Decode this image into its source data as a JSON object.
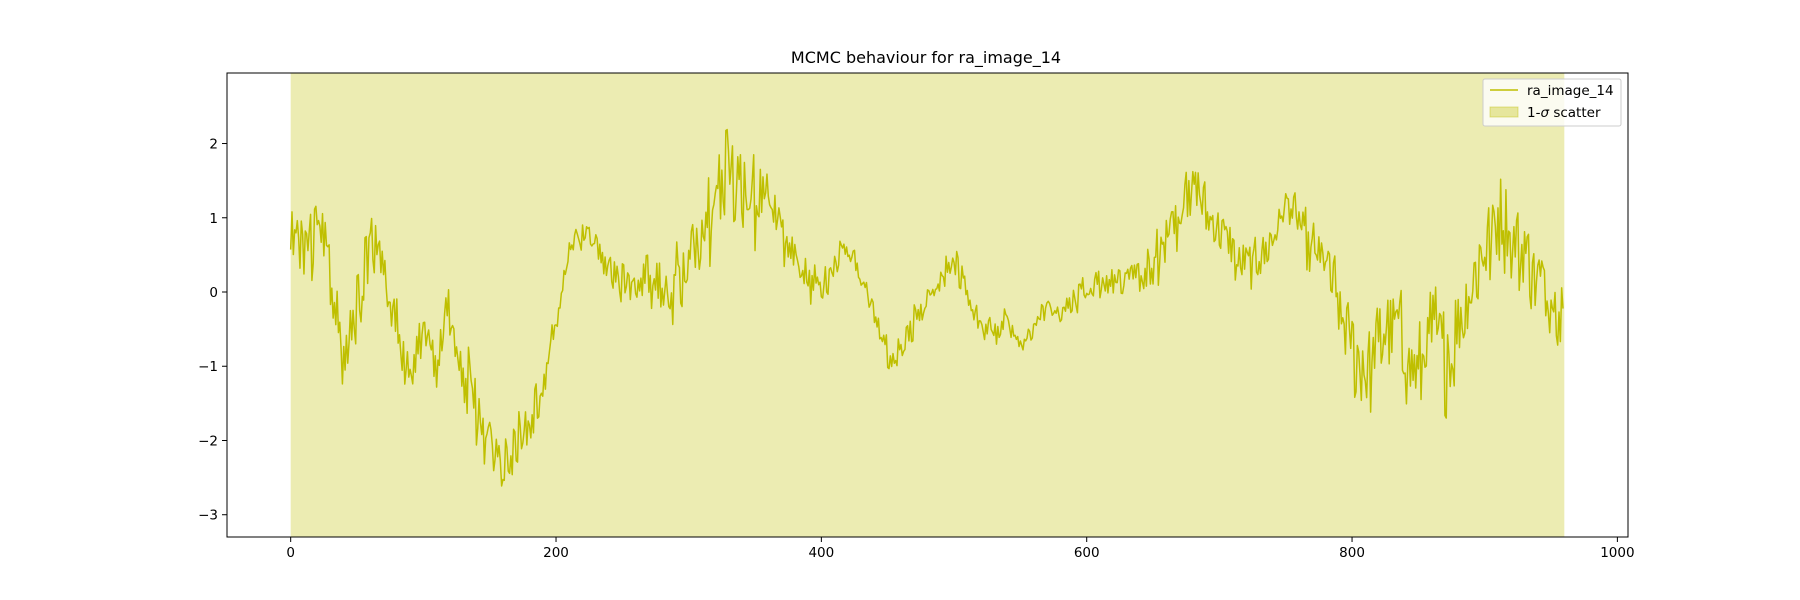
{
  "chart_data": {
    "type": "line",
    "title": "MCMC behaviour for ra_image_14",
    "xlabel": "",
    "ylabel": "",
    "xlim": [
      -48,
      1008
    ],
    "ylim": [
      -3.3,
      2.95
    ],
    "xticks": [
      0,
      200,
      400,
      600,
      800,
      1000
    ],
    "yticks": [
      -3,
      -2,
      -1,
      0,
      1,
      2
    ],
    "xtick_labels": [
      "0",
      "200",
      "400",
      "600",
      "800",
      "1000"
    ],
    "ytick_labels": [
      "−3",
      "−2",
      "−1",
      "0",
      "1",
      "2"
    ],
    "grid": false,
    "legend_position": "top-right",
    "n_samples": 960,
    "series": [
      {
        "name": "ra_image_14",
        "color": "#bfbf00",
        "anchors": [
          [
            0,
            0.85
          ],
          [
            10,
            0.6
          ],
          [
            20,
            0.9
          ],
          [
            30,
            0.2
          ],
          [
            40,
            -0.9
          ],
          [
            50,
            -0.3
          ],
          [
            60,
            0.8
          ],
          [
            70,
            0.4
          ],
          [
            80,
            -0.5
          ],
          [
            90,
            -1.2
          ],
          [
            100,
            -0.5
          ],
          [
            110,
            -1.0
          ],
          [
            120,
            -0.3
          ],
          [
            130,
            -1.0
          ],
          [
            140,
            -1.6
          ],
          [
            150,
            -2.0
          ],
          [
            160,
            -2.4
          ],
          [
            170,
            -2.0
          ],
          [
            180,
            -1.8
          ],
          [
            190,
            -1.3
          ],
          [
            200,
            -0.4
          ],
          [
            210,
            0.5
          ],
          [
            220,
            0.8
          ],
          [
            230,
            0.7
          ],
          [
            240,
            0.3
          ],
          [
            250,
            0.1
          ],
          [
            260,
            0.0
          ],
          [
            270,
            0.2
          ],
          [
            280,
            -0.1
          ],
          [
            290,
            0.1
          ],
          [
            300,
            0.4
          ],
          [
            310,
            0.8
          ],
          [
            320,
            1.3
          ],
          [
            330,
            1.8
          ],
          [
            340,
            1.5
          ],
          [
            350,
            1.2
          ],
          [
            360,
            1.4
          ],
          [
            370,
            0.8
          ],
          [
            380,
            0.4
          ],
          [
            390,
            0.2
          ],
          [
            400,
            0.1
          ],
          [
            410,
            0.4
          ],
          [
            420,
            0.6
          ],
          [
            430,
            0.2
          ],
          [
            440,
            -0.3
          ],
          [
            450,
            -0.8
          ],
          [
            460,
            -0.8
          ],
          [
            470,
            -0.4
          ],
          [
            480,
            -0.1
          ],
          [
            490,
            0.2
          ],
          [
            500,
            0.4
          ],
          [
            510,
            0.0
          ],
          [
            520,
            -0.4
          ],
          [
            530,
            -0.6
          ],
          [
            540,
            -0.3
          ],
          [
            550,
            -0.8
          ],
          [
            560,
            -0.5
          ],
          [
            570,
            -0.2
          ],
          [
            580,
            -0.3
          ],
          [
            590,
            -0.1
          ],
          [
            600,
            0.0
          ],
          [
            610,
            0.1
          ],
          [
            620,
            0.2
          ],
          [
            630,
            0.2
          ],
          [
            640,
            0.3
          ],
          [
            650,
            0.4
          ],
          [
            660,
            0.7
          ],
          [
            670,
            1.1
          ],
          [
            680,
            1.4
          ],
          [
            690,
            1.1
          ],
          [
            700,
            0.9
          ],
          [
            710,
            0.5
          ],
          [
            720,
            0.3
          ],
          [
            730,
            0.5
          ],
          [
            740,
            0.7
          ],
          [
            750,
            1.2
          ],
          [
            760,
            0.9
          ],
          [
            770,
            0.6
          ],
          [
            780,
            0.4
          ],
          [
            790,
            -0.2
          ],
          [
            800,
            -0.8
          ],
          [
            810,
            -1.1
          ],
          [
            820,
            -0.7
          ],
          [
            830,
            -0.3
          ],
          [
            840,
            -0.8
          ],
          [
            850,
            -1.0
          ],
          [
            860,
            -0.4
          ],
          [
            870,
            -0.9
          ],
          [
            880,
            -0.6
          ],
          [
            890,
            0.1
          ],
          [
            900,
            0.6
          ],
          [
            910,
            0.9
          ],
          [
            920,
            0.7
          ],
          [
            930,
            0.5
          ],
          [
            940,
            0.2
          ],
          [
            950,
            0.0
          ],
          [
            959,
            -0.2
          ]
        ],
        "noise_amplitude": [
          [
            0,
            0.7
          ],
          [
            60,
            0.7
          ],
          [
            100,
            0.45
          ],
          [
            140,
            0.7
          ],
          [
            200,
            0.25
          ],
          [
            260,
            0.35
          ],
          [
            300,
            0.75
          ],
          [
            340,
            0.8
          ],
          [
            380,
            0.4
          ],
          [
            440,
            0.3
          ],
          [
            500,
            0.25
          ],
          [
            560,
            0.2
          ],
          [
            620,
            0.25
          ],
          [
            660,
            0.55
          ],
          [
            700,
            0.45
          ],
          [
            760,
            0.4
          ],
          [
            800,
            0.75
          ],
          [
            860,
            0.85
          ],
          [
            900,
            0.8
          ],
          [
            959,
            0.6
          ]
        ]
      }
    ],
    "band": {
      "name": "1-σ scatter",
      "x_start": 0,
      "x_end": 960,
      "y_low": -5,
      "y_high": 5,
      "color": "#bfbf00",
      "opacity": 0.3
    },
    "legend": [
      {
        "label": "ra_image_14",
        "kind": "line"
      },
      {
        "label_prefix": "1-",
        "label_symbol": "σ",
        "label_suffix": " scatter",
        "kind": "patch"
      }
    ]
  }
}
